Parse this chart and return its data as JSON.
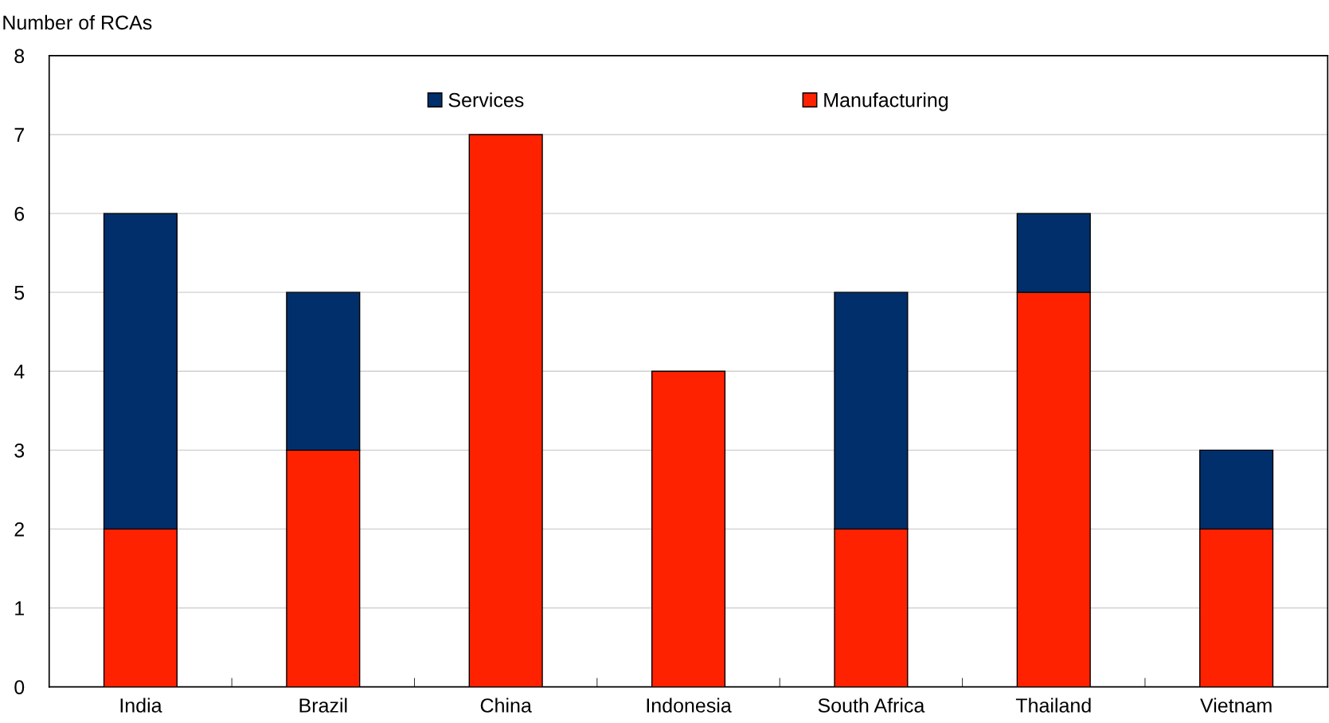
{
  "chart_data": {
    "type": "bar",
    "stacked": true,
    "ylabel": "Number of RCAs",
    "categories": [
      "India",
      "Brazil",
      "China",
      "Indonesia",
      "South Africa",
      "Thailand",
      "Vietnam"
    ],
    "series": [
      {
        "name": "Manufacturing",
        "color": "#ff2200",
        "values": [
          2,
          3,
          7,
          4,
          2,
          5,
          2
        ]
      },
      {
        "name": "Services",
        "color": "#002f6c",
        "values": [
          4,
          2,
          null,
          null,
          3,
          1,
          1
        ]
      }
    ],
    "ylim": [
      0,
      8
    ],
    "yticks": [
      0,
      1,
      2,
      3,
      4,
      5,
      6,
      7,
      8
    ],
    "grid": "y",
    "legend": "top"
  }
}
